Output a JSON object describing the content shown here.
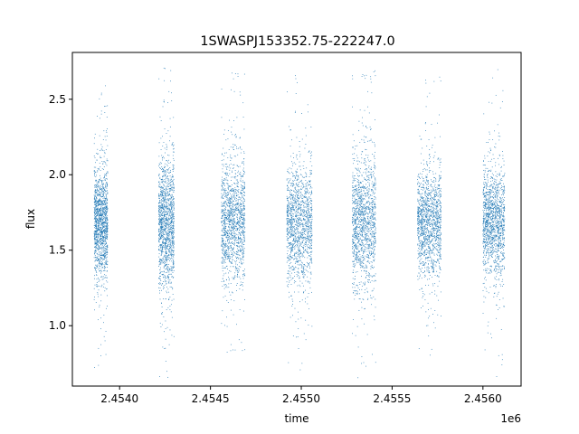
{
  "chart_data": {
    "type": "scatter",
    "title": "1SWASPJ153352.75-222247.0",
    "xlabel": "time",
    "ylabel": "flux",
    "x_offset_label": "1e6",
    "xlim": [
      2453740,
      2456210
    ],
    "ylim": [
      0.6,
      2.81
    ],
    "x_ticks": [
      2454000,
      2454500,
      2455000,
      2455500,
      2456000
    ],
    "x_tick_labels": [
      "2.4540",
      "2.4545",
      "2.4550",
      "2.4555",
      "2.4560"
    ],
    "y_ticks": [
      1.0,
      1.5,
      2.0,
      2.5
    ],
    "y_tick_labels": [
      "1.0",
      "1.5",
      "2.0",
      "2.5"
    ],
    "grid": false,
    "marker_color": "#1f77b4",
    "series": [
      {
        "points_summary": "dense observation seasons",
        "seasons": [
          {
            "x_start": 2453860,
            "x_end": 2453935,
            "y_center": 1.68,
            "y_core": [
              1.45,
              1.9
            ],
            "y_min": 0.63,
            "y_max": 2.72
          },
          {
            "x_start": 2454215,
            "x_end": 2454300,
            "y_center": 1.68,
            "y_core": [
              1.4,
              1.95
            ],
            "y_min": 0.65,
            "y_max": 2.73
          },
          {
            "x_start": 2454560,
            "x_end": 2454690,
            "y_center": 1.68,
            "y_core": [
              1.45,
              1.95
            ],
            "y_min": 0.82,
            "y_max": 2.7
          },
          {
            "x_start": 2454920,
            "x_end": 2455060,
            "y_center": 1.68,
            "y_core": [
              1.45,
              1.95
            ],
            "y_min": 0.66,
            "y_max": 2.68
          },
          {
            "x_start": 2455280,
            "x_end": 2455410,
            "y_center": 1.68,
            "y_core": [
              1.4,
              1.95
            ],
            "y_min": 0.65,
            "y_max": 2.69
          },
          {
            "x_start": 2455640,
            "x_end": 2455770,
            "y_center": 1.68,
            "y_core": [
              1.45,
              1.9
            ],
            "y_min": 0.65,
            "y_max": 2.65
          },
          {
            "x_start": 2456000,
            "x_end": 2456120,
            "y_center": 1.68,
            "y_core": [
              1.45,
              1.9
            ],
            "y_min": 0.63,
            "y_max": 2.72
          }
        ]
      }
    ]
  }
}
